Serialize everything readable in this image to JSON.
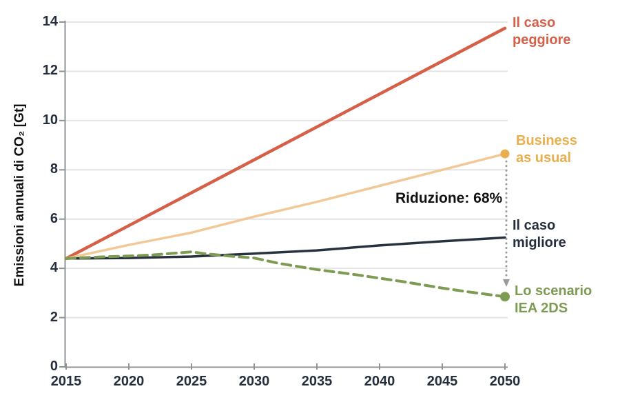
{
  "figure": {
    "background": "#FFFFFF",
    "labels": {
      "worst": {
        "text": "Il caso\npeggiore",
        "color": "#D65F48"
      },
      "bau": {
        "text": "Business\nas usual",
        "color": "#E9AE4E"
      },
      "best": {
        "text": "Il caso\nmigliore",
        "color": "#242E3C"
      },
      "iea": {
        "text": "Lo scenario\nIEA 2DS",
        "color": "#7D9B52"
      }
    }
  },
  "chart_data": {
    "type": "line",
    "title": "",
    "xlabel": "",
    "ylabel": "Emissioni annuali di CO₂ [Gt]",
    "xlim": [
      2015,
      2050
    ],
    "ylim": [
      0,
      14
    ],
    "x_ticks": [
      2015,
      2020,
      2025,
      2030,
      2035,
      2040,
      2045,
      2050
    ],
    "y_ticks": [
      0,
      2,
      4,
      6,
      8,
      10,
      12,
      14
    ],
    "grid": "horizontal",
    "grid_color": "#E4E4E4",
    "axis_color": "#8F9396",
    "tick_label_color": "#242E3C",
    "legend": "labels-at-line-ends-right",
    "series": [
      {
        "id": "il-caso-peggiore",
        "name": "Il caso peggiore",
        "color": "#D65F48",
        "style": "solid",
        "width": 4.5,
        "x": [
          2015,
          2050
        ],
        "values": [
          4.4,
          13.75
        ]
      },
      {
        "id": "business-as-usual",
        "name": "Business as usual",
        "color": "#F2C897",
        "style": "solid",
        "width": 3.5,
        "end_dot": {
          "color": "#E9AE4E",
          "r": 6.5
        },
        "x": [
          2015,
          2020,
          2025,
          2030,
          2035,
          2040,
          2045,
          2050
        ],
        "values": [
          4.4,
          4.95,
          5.45,
          6.1,
          6.7,
          7.35,
          8.0,
          8.65
        ]
      },
      {
        "id": "il-caso-migliore",
        "name": "Il caso migliore",
        "color": "#28323F",
        "style": "solid",
        "width": 3.5,
        "x": [
          2015,
          2020,
          2025,
          2030,
          2035,
          2040,
          2045,
          2050
        ],
        "values": [
          4.4,
          4.42,
          4.48,
          4.6,
          4.73,
          4.93,
          5.1,
          5.25
        ]
      },
      {
        "id": "scenario-iea-2ds",
        "name": "Lo scenario IEA 2DS",
        "color": "#7D9B52",
        "style": "dashed",
        "dash": "13 8",
        "width": 4,
        "end_dot": {
          "color": "#7D9B52",
          "r": 7
        },
        "x": [
          2015,
          2018,
          2020,
          2022,
          2024,
          2025,
          2026,
          2028,
          2030,
          2032,
          2035,
          2038,
          2040,
          2042,
          2045,
          2047,
          2050
        ],
        "values": [
          4.4,
          4.47,
          4.5,
          4.55,
          4.63,
          4.67,
          4.6,
          4.5,
          4.42,
          4.2,
          3.95,
          3.75,
          3.6,
          3.45,
          3.2,
          3.05,
          2.85
        ]
      }
    ],
    "annotation": {
      "text": "Riduzione: 68%",
      "text_color": "#111111",
      "arrow_x": 2050,
      "arrow_from_value": 8.65,
      "arrow_to_value": 3.25,
      "arrow_color": "#9A9A9A",
      "arrow_style": "dotted-vertical-down"
    }
  }
}
